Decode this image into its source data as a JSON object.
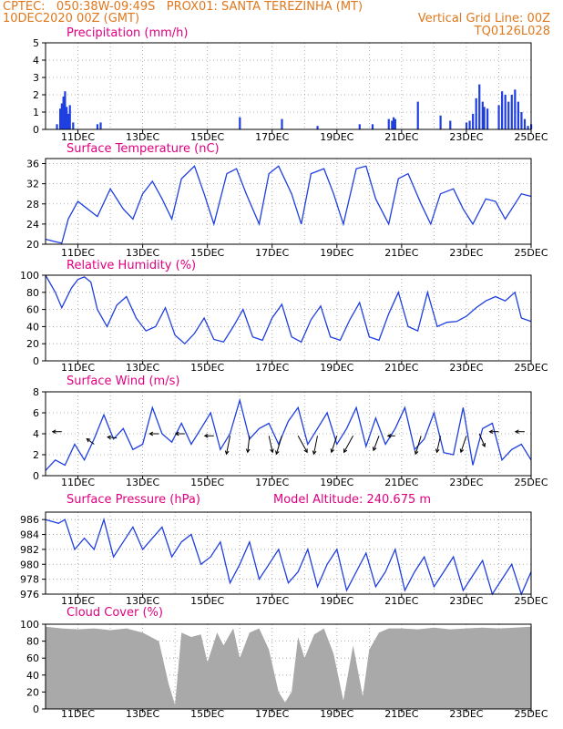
{
  "header": {
    "line1_left": "CPTEC:   050:38W-09:49S   PROX01: SANTA TEREZINHA (MT)",
    "line2_left": "10DEC2020 00Z (GMT)",
    "line2_right": "Vertical Grid Line: 00Z",
    "line3_right": "TQ0126L028"
  },
  "colors": {
    "header": "#e0781e",
    "title": "#e0007f",
    "series": "#1f3fe0",
    "precip_bar": "#1f3fe0",
    "wind_arrow": "#000000",
    "cloud_fill": "#a9a9a9",
    "grid": "#9a9a9a"
  },
  "x_axis": {
    "tick_labels": [
      "11DEC",
      "13DEC",
      "15DEC",
      "17DEC",
      "19DEC",
      "21DEC",
      "23DEC",
      "25DEC"
    ],
    "tick_days": [
      1,
      3,
      5,
      7,
      9,
      11,
      13,
      15
    ],
    "range_days": [
      0,
      15
    ]
  },
  "chart_data": [
    {
      "type": "bar",
      "title": "Precipitation (mm/h)",
      "ylim": [
        0,
        5
      ],
      "yticks": [
        0,
        1,
        2,
        3,
        4,
        5
      ],
      "series": [
        {
          "x": [
            0.35,
            0.45,
            0.5,
            0.55,
            0.6,
            0.65,
            0.7,
            0.75,
            0.85,
            1.6,
            1.7,
            6.0,
            7.3,
            8.4,
            9.7,
            10.1,
            10.6,
            10.7,
            10.75,
            10.8,
            11.5,
            12.2,
            12.5,
            13.0,
            13.1,
            13.2,
            13.3,
            13.4,
            13.5,
            13.55,
            13.65,
            14.0,
            14.1,
            14.2,
            14.3,
            14.4,
            14.5,
            14.6,
            14.7,
            14.8,
            14.9,
            15.0
          ],
          "y": [
            0.3,
            1.2,
            1.5,
            1.9,
            2.2,
            1.3,
            0.9,
            1.4,
            0.4,
            0.3,
            0.4,
            0.7,
            0.6,
            0.2,
            0.3,
            0.3,
            0.6,
            0.5,
            0.7,
            0.6,
            1.6,
            0.8,
            0.5,
            0.4,
            0.5,
            0.9,
            1.8,
            2.6,
            1.6,
            1.3,
            1.2,
            1.4,
            2.2,
            2.0,
            1.6,
            2.0,
            2.3,
            1.6,
            1.0,
            0.6,
            0.2,
            0.3
          ]
        }
      ]
    },
    {
      "type": "line",
      "title": "Surface Temperature (nC)",
      "ylim": [
        20,
        37
      ],
      "yticks": [
        20,
        24,
        28,
        32,
        36
      ],
      "series": [
        {
          "x": [
            0,
            0.3,
            0.5,
            0.7,
            1.0,
            1.3,
            1.6,
            2.0,
            2.4,
            2.7,
            3.0,
            3.3,
            3.6,
            3.9,
            4.2,
            4.6,
            4.9,
            5.2,
            5.6,
            5.9,
            6.2,
            6.6,
            6.9,
            7.2,
            7.6,
            7.9,
            8.2,
            8.6,
            8.9,
            9.2,
            9.6,
            9.9,
            10.2,
            10.6,
            10.9,
            11.2,
            11.6,
            11.9,
            12.2,
            12.6,
            12.9,
            13.2,
            13.6,
            13.9,
            14.2,
            14.5,
            14.7,
            15.0
          ],
          "y": [
            21,
            20.5,
            20.2,
            25,
            28.5,
            27,
            25.5,
            31,
            27,
            25,
            30,
            32.5,
            29,
            25,
            33,
            35.5,
            30,
            24,
            34,
            35,
            30,
            24,
            34,
            35.5,
            30,
            24,
            34,
            35,
            30,
            24,
            35,
            35.5,
            29,
            24,
            33,
            34,
            28,
            24,
            30,
            31,
            27,
            24,
            29,
            28.5,
            25,
            28,
            30,
            29.5
          ]
        }
      ]
    },
    {
      "type": "line",
      "title": "Relative Humidity (%)",
      "ylim": [
        0,
        100
      ],
      "yticks": [
        0,
        20,
        40,
        60,
        80,
        100
      ],
      "series": [
        {
          "x": [
            0,
            0.3,
            0.5,
            0.8,
            1.0,
            1.2,
            1.4,
            1.6,
            1.9,
            2.2,
            2.5,
            2.8,
            3.1,
            3.4,
            3.7,
            4.0,
            4.3,
            4.6,
            4.9,
            5.2,
            5.5,
            5.8,
            6.1,
            6.4,
            6.7,
            7.0,
            7.3,
            7.6,
            7.9,
            8.2,
            8.5,
            8.8,
            9.1,
            9.4,
            9.7,
            10.0,
            10.3,
            10.6,
            10.9,
            11.2,
            11.5,
            11.8,
            12.1,
            12.4,
            12.7,
            13.0,
            13.3,
            13.6,
            13.9,
            14.2,
            14.5,
            14.7,
            15.0
          ],
          "y": [
            100,
            80,
            62,
            85,
            95,
            98,
            92,
            60,
            40,
            65,
            75,
            50,
            35,
            40,
            62,
            30,
            20,
            32,
            50,
            25,
            22,
            40,
            60,
            28,
            24,
            50,
            66,
            28,
            22,
            48,
            64,
            28,
            24,
            48,
            68,
            28,
            24,
            55,
            80,
            40,
            35,
            80,
            40,
            45,
            46,
            52,
            62,
            70,
            75,
            70,
            80,
            50,
            46
          ]
        }
      ]
    },
    {
      "type": "line",
      "title": "Surface Wind (m/s)",
      "ylim": [
        0,
        8
      ],
      "yticks": [
        0,
        2,
        4,
        6,
        8
      ],
      "series": [
        {
          "x": [
            0,
            0.3,
            0.6,
            0.9,
            1.2,
            1.5,
            1.8,
            2.1,
            2.4,
            2.7,
            3.0,
            3.3,
            3.6,
            3.9,
            4.2,
            4.5,
            4.8,
            5.1,
            5.4,
            5.7,
            6.0,
            6.3,
            6.6,
            6.9,
            7.2,
            7.5,
            7.8,
            8.1,
            8.4,
            8.7,
            9.0,
            9.3,
            9.6,
            9.9,
            10.2,
            10.5,
            10.8,
            11.1,
            11.4,
            11.7,
            12.0,
            12.3,
            12.6,
            12.9,
            13.2,
            13.5,
            13.8,
            14.1,
            14.4,
            14.7,
            15.0
          ],
          "y": [
            0.5,
            1.5,
            1.0,
            3.0,
            1.5,
            3.5,
            5.8,
            3.5,
            4.5,
            2.5,
            3.0,
            6.5,
            4.0,
            3.2,
            5.0,
            3.0,
            4.5,
            6.0,
            2.5,
            4.0,
            7.2,
            3.5,
            4.5,
            5.0,
            3.0,
            5.2,
            6.5,
            3.0,
            4.5,
            6.0,
            3.0,
            4.5,
            6.5,
            2.8,
            5.5,
            3.0,
            4.5,
            6.5,
            2.5,
            3.5,
            6.0,
            2.2,
            2.0,
            6.5,
            1.0,
            4.5,
            5.0,
            1.5,
            2.5,
            3.0,
            1.5
          ]
        }
      ]
    },
    {
      "type": "line",
      "title": "Surface Pressure (hPa)",
      "ylim": [
        976,
        987
      ],
      "yticks": [
        976,
        978,
        980,
        982,
        984,
        986
      ],
      "series": [
        {
          "x": [
            0,
            0.4,
            0.6,
            0.9,
            1.2,
            1.5,
            1.8,
            2.1,
            2.4,
            2.7,
            3.0,
            3.3,
            3.6,
            3.9,
            4.2,
            4.5,
            4.8,
            5.1,
            5.4,
            5.7,
            6.0,
            6.3,
            6.6,
            6.9,
            7.2,
            7.5,
            7.8,
            8.1,
            8.4,
            8.7,
            9.0,
            9.3,
            9.6,
            9.9,
            10.2,
            10.5,
            10.8,
            11.1,
            11.4,
            11.7,
            12.0,
            12.3,
            12.6,
            12.9,
            13.2,
            13.5,
            13.8,
            14.1,
            14.4,
            14.7,
            15.0
          ],
          "y": [
            986,
            985.5,
            986,
            982,
            983.5,
            982,
            986,
            981,
            983,
            985,
            982,
            983.5,
            985,
            981,
            983,
            984,
            980,
            981,
            983,
            977.5,
            980,
            983,
            978,
            980,
            982,
            977.5,
            979,
            982,
            977,
            980,
            982,
            976.5,
            979,
            981.5,
            977,
            979,
            982,
            976.5,
            979,
            981,
            977,
            979,
            981,
            976.5,
            978.5,
            980.5,
            976,
            978,
            980,
            976,
            979
          ]
        }
      ]
    },
    {
      "type": "area",
      "title": "Cloud Cover (%)",
      "ylim": [
        0,
        100
      ],
      "yticks": [
        0,
        20,
        40,
        60,
        80,
        100
      ],
      "series": [
        {
          "x": [
            0,
            0.5,
            1.0,
            1.5,
            2.0,
            2.5,
            3.0,
            3.5,
            3.8,
            4.0,
            4.2,
            4.5,
            4.8,
            5.0,
            5.3,
            5.5,
            5.8,
            6.0,
            6.3,
            6.6,
            6.9,
            7.2,
            7.4,
            7.6,
            7.8,
            8.0,
            8.3,
            8.6,
            8.9,
            9.2,
            9.5,
            9.8,
            10.0,
            10.3,
            10.6,
            11.0,
            11.5,
            12.0,
            12.5,
            13.0,
            13.5,
            14.0,
            14.5,
            15.0
          ],
          "y": [
            97,
            95,
            94,
            95,
            93,
            95,
            90,
            80,
            30,
            5,
            90,
            85,
            88,
            55,
            90,
            75,
            95,
            60,
            90,
            95,
            70,
            20,
            8,
            20,
            85,
            60,
            88,
            95,
            65,
            10,
            75,
            15,
            70,
            90,
            95,
            95,
            94,
            96,
            94,
            95,
            96,
            95,
            96,
            97
          ]
        }
      ]
    }
  ],
  "annotations": {
    "model_altitude": "Model Altitude: 240.675 m"
  }
}
